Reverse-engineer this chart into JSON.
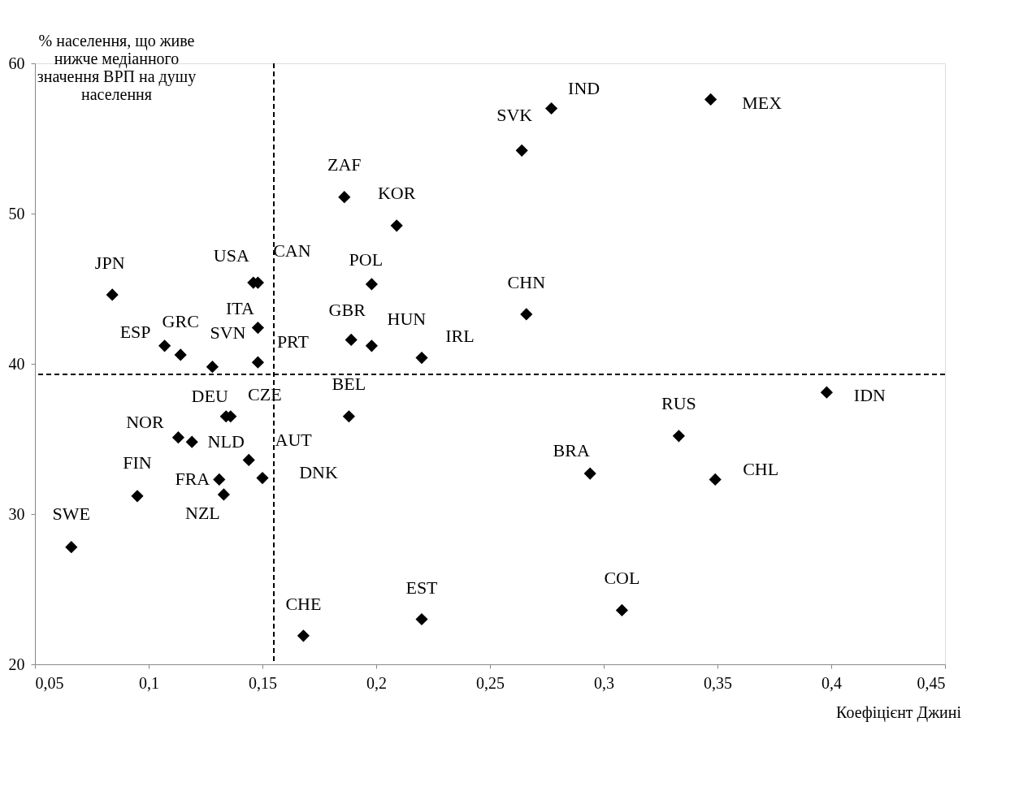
{
  "chart_data": {
    "type": "scatter",
    "xlabel": "Коефіцієнт Джині",
    "ylabel": "% населення, що живе нижче медіанного значення ВРП на душу населення",
    "marker": "diamond",
    "grid": false,
    "xlim": [
      0.05,
      0.45
    ],
    "xticks": [
      {
        "value": 0.05,
        "label": "0,05"
      },
      {
        "value": 0.1,
        "label": "0,1"
      },
      {
        "value": 0.15,
        "label": "0,15"
      },
      {
        "value": 0.2,
        "label": "0,2"
      },
      {
        "value": 0.25,
        "label": "0,25"
      },
      {
        "value": 0.3,
        "label": "0,3"
      },
      {
        "value": 0.35,
        "label": "0,35"
      },
      {
        "value": 0.4,
        "label": "0,4"
      },
      {
        "value": 0.45,
        "label": "0,45"
      }
    ],
    "ylim": [
      20,
      60
    ],
    "yticks": [
      20,
      30,
      40,
      50,
      60
    ],
    "ref_lines": [
      {
        "axis": "x",
        "value": 0.155,
        "line_style": "dashed",
        "color": "#000000"
      },
      {
        "axis": "y",
        "value": 39.3,
        "line_style": "dashed",
        "color": "#000000"
      }
    ],
    "series": [
      {
        "color": "#000000",
        "x": [
          0.066,
          0.095,
          0.084,
          0.107,
          0.114,
          0.128,
          0.113,
          0.119,
          0.134,
          0.136,
          0.131,
          0.133,
          0.144,
          0.15,
          0.146,
          0.148,
          0.148,
          0.148,
          0.168,
          0.186,
          0.209,
          0.198,
          0.189,
          0.198,
          0.22,
          0.188,
          0.22,
          0.264,
          0.277,
          0.266,
          0.347,
          0.294,
          0.308,
          0.333,
          0.349,
          0.398
        ],
        "values": [
          27.8,
          31.2,
          44.6,
          41.2,
          40.6,
          39.8,
          35.1,
          34.8,
          36.5,
          36.5,
          32.3,
          31.3,
          33.6,
          32.4,
          45.4,
          45.4,
          42.4,
          40.1,
          21.9,
          51.1,
          49.2,
          45.3,
          41.6,
          41.2,
          40.4,
          36.5,
          23.0,
          54.2,
          57.0,
          43.3,
          57.6,
          32.7,
          23.6,
          35.2,
          32.3,
          38.1
        ],
        "value_labels": [
          "SWE",
          "FIN",
          "JPN",
          "ESP",
          "GRC",
          "SVN",
          "NOR",
          "NLD",
          "DEU",
          "CZE",
          "FRA",
          "NZL",
          "AUT",
          "DNK",
          "USA",
          "CAN",
          "ITA",
          "PRT",
          "CHE",
          "ZAF",
          "KOR",
          "POL",
          "GBR",
          "HUN",
          "IRL",
          "BEL",
          "EST",
          "SVK",
          "IND",
          "CHN",
          "MEX",
          "BRA",
          "COL",
          "RUS",
          "CHL",
          "IDN"
        ]
      }
    ]
  }
}
